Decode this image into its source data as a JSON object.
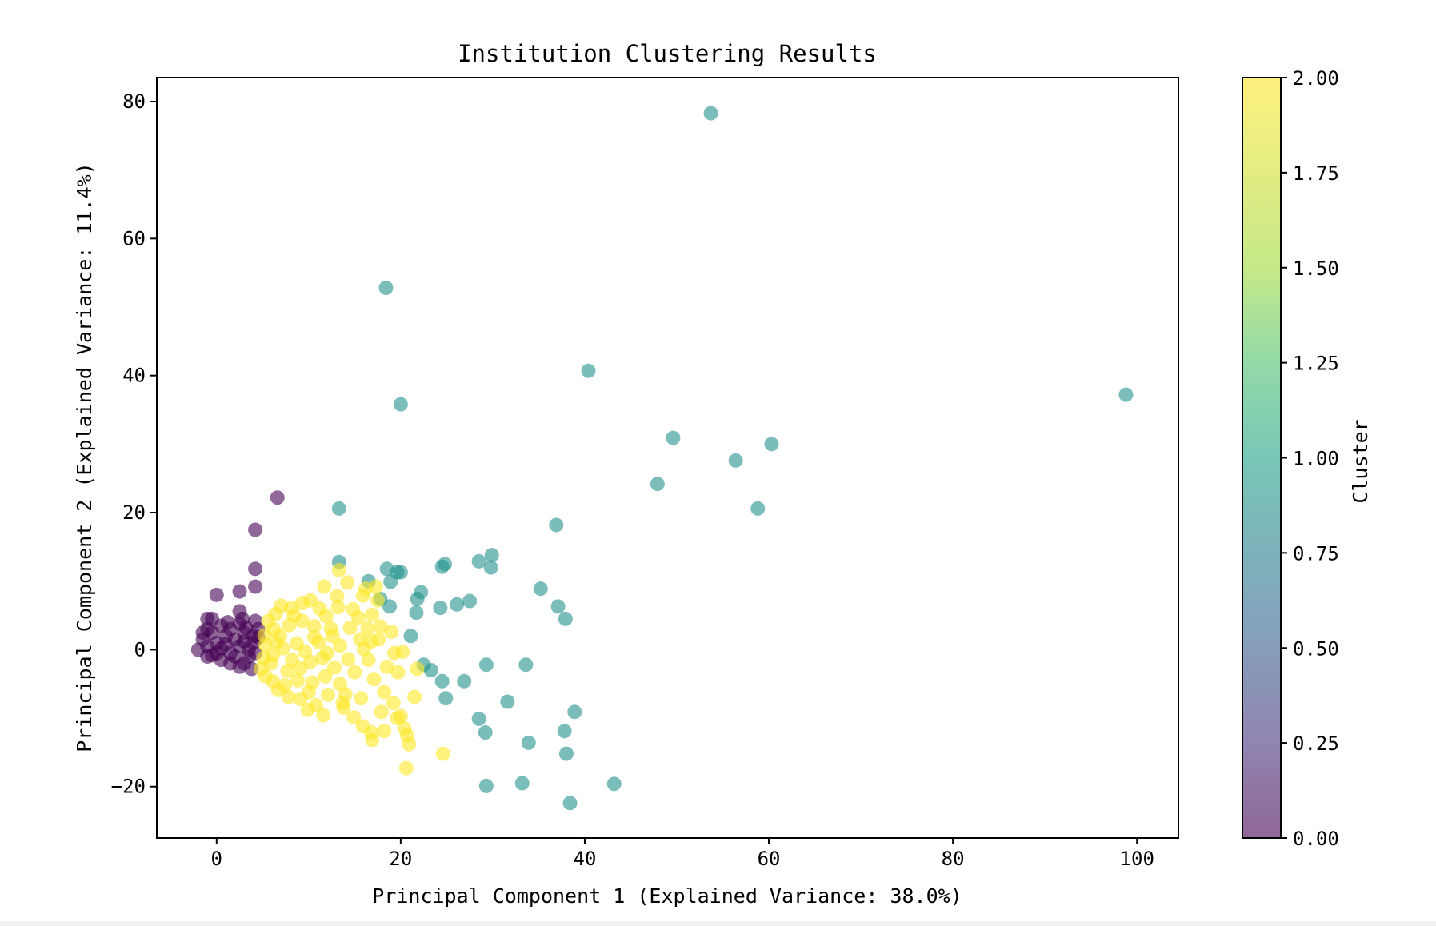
{
  "chart_data": {
    "type": "scatter",
    "title": "Institution Clustering Results",
    "xlabel": "Principal Component 1 (Explained Variance: 38.0%)",
    "ylabel": "Principal Component 2 (Explained Variance: 11.4%)",
    "xlim": [
      -6.5,
      104.5
    ],
    "ylim": [
      -27.5,
      83.5
    ],
    "xticks": [
      0,
      20,
      40,
      60,
      80,
      100
    ],
    "yticks": [
      -20,
      0,
      20,
      40,
      60,
      80
    ],
    "colorbar": {
      "label": "Cluster",
      "range": [
        0,
        2
      ],
      "ticks": [
        "0.00",
        "0.25",
        "0.50",
        "0.75",
        "1.00",
        "1.25",
        "1.50",
        "1.75",
        "2.00"
      ],
      "colormap": "viridis"
    },
    "colors": {
      "cluster_0": "#440154",
      "cluster_1": "#21918c",
      "cluster_2": "#fde725"
    },
    "alpha": 0.6,
    "series": [
      {
        "cluster": 0,
        "points": [
          [
            0,
            1
          ],
          [
            0.5,
            0.2
          ],
          [
            1,
            2
          ],
          [
            1.5,
            -0.5
          ],
          [
            2,
            1.5
          ],
          [
            2.5,
            0.5
          ],
          [
            3,
            2.5
          ],
          [
            3.5,
            -1
          ],
          [
            4,
            1
          ],
          [
            4.5,
            3
          ],
          [
            -1,
            0.5
          ],
          [
            -1.5,
            1.5
          ],
          [
            -2,
            0
          ],
          [
            -1,
            -1
          ],
          [
            -0.5,
            2.5
          ],
          [
            0.5,
            3.5
          ],
          [
            1.5,
            3
          ],
          [
            2.5,
            3.8
          ],
          [
            3.2,
            3.2
          ],
          [
            4,
            2
          ],
          [
            -1,
            3
          ],
          [
            -1,
            4.5
          ],
          [
            -0.5,
            4.5
          ],
          [
            0.5,
            -1.5
          ],
          [
            1.5,
            -2
          ],
          [
            2.5,
            -2.5
          ],
          [
            3,
            -2
          ],
          [
            3.5,
            0
          ],
          [
            4.2,
            -0.5
          ],
          [
            4.5,
            1.8
          ],
          [
            0,
            -0.5
          ],
          [
            1,
            0.8
          ],
          [
            2,
            -1
          ],
          [
            3,
            1.2
          ],
          [
            -0.5,
            -0.8
          ],
          [
            1.2,
            4
          ],
          [
            2.8,
            4.5
          ],
          [
            -1.5,
            2.5
          ],
          [
            4.2,
            4.2
          ],
          [
            3.8,
            -2.8
          ],
          [
            0,
            8
          ],
          [
            2.5,
            8.5
          ],
          [
            4.2,
            9.2
          ],
          [
            2.5,
            5.6
          ],
          [
            4.2,
            11.8
          ],
          [
            4.2,
            17.5
          ],
          [
            6.6,
            22.2
          ]
        ]
      },
      {
        "cluster": 1,
        "points": [
          [
            53.7,
            78.3
          ],
          [
            18.4,
            52.8
          ],
          [
            40.4,
            40.7
          ],
          [
            20.0,
            35.8
          ],
          [
            98.8,
            37.2
          ],
          [
            49.6,
            30.9
          ],
          [
            60.3,
            30.0
          ],
          [
            56.4,
            27.6
          ],
          [
            47.9,
            24.2
          ],
          [
            58.8,
            20.6
          ],
          [
            13.3,
            20.6
          ],
          [
            36.9,
            18.2
          ],
          [
            13.3,
            12.8
          ],
          [
            18.5,
            11.8
          ],
          [
            19.6,
            11.3
          ],
          [
            20.0,
            11.3
          ],
          [
            24.5,
            12.1
          ],
          [
            24.8,
            12.5
          ],
          [
            28.5,
            12.9
          ],
          [
            29.9,
            13.8
          ],
          [
            29.8,
            12.0
          ],
          [
            16.5,
            10.0
          ],
          [
            18.9,
            9.9
          ],
          [
            35.2,
            8.9
          ],
          [
            22.2,
            8.4
          ],
          [
            21.8,
            7.4
          ],
          [
            17.8,
            7.4
          ],
          [
            27.5,
            7.1
          ],
          [
            26.1,
            6.6
          ],
          [
            24.3,
            6.1
          ],
          [
            18.8,
            6.3
          ],
          [
            37.1,
            6.3
          ],
          [
            21.7,
            5.4
          ],
          [
            37.9,
            4.5
          ],
          [
            21.1,
            2.0
          ],
          [
            22.5,
            -2.2
          ],
          [
            23.3,
            -3.0
          ],
          [
            29.3,
            -2.2
          ],
          [
            33.6,
            -2.2
          ],
          [
            24.5,
            -4.6
          ],
          [
            26.9,
            -4.6
          ],
          [
            24.9,
            -7.1
          ],
          [
            31.6,
            -7.6
          ],
          [
            38.9,
            -9.1
          ],
          [
            28.5,
            -10.1
          ],
          [
            29.2,
            -12.1
          ],
          [
            37.8,
            -11.9
          ],
          [
            33.9,
            -13.6
          ],
          [
            38.0,
            -15.2
          ],
          [
            29.3,
            -19.9
          ],
          [
            33.2,
            -19.5
          ],
          [
            43.2,
            -19.6
          ],
          [
            38.4,
            -22.4
          ]
        ]
      },
      {
        "cluster": 2,
        "points": [
          [
            13.3,
            11.6
          ],
          [
            14.2,
            9.8
          ],
          [
            11.7,
            9.2
          ],
          [
            16.2,
            8.9
          ],
          [
            17.3,
            9.2
          ],
          [
            15.9,
            7.9
          ],
          [
            13.1,
            7.8
          ],
          [
            10.2,
            7.2
          ],
          [
            9.3,
            6.8
          ],
          [
            8.1,
            6.1
          ],
          [
            7.0,
            6.4
          ],
          [
            6.4,
            5.2
          ],
          [
            5.6,
            4.2
          ],
          [
            5.2,
            2.1
          ],
          [
            5.3,
            0.7
          ],
          [
            5.1,
            -1.2
          ],
          [
            4.8,
            -2.8
          ],
          [
            5.3,
            -3.9
          ],
          [
            6.1,
            -4.6
          ],
          [
            6.7,
            -5.9
          ],
          [
            7.8,
            -6.9
          ],
          [
            9.1,
            -7.2
          ],
          [
            10.8,
            -8.1
          ],
          [
            11.6,
            -9.6
          ],
          [
            13.8,
            -8.5
          ],
          [
            14.9,
            -9.9
          ],
          [
            15.9,
            -11.2
          ],
          [
            16.8,
            -12.1
          ],
          [
            16.9,
            -13.2
          ],
          [
            18.2,
            -11.9
          ],
          [
            19.6,
            -10.0
          ],
          [
            20.0,
            -9.7
          ],
          [
            20.4,
            -11.5
          ],
          [
            20.7,
            -12.5
          ],
          [
            20.9,
            -13.8
          ],
          [
            20.6,
            -17.3
          ],
          [
            24.6,
            -15.2
          ],
          [
            21.5,
            -6.9
          ],
          [
            19.2,
            -7.8
          ],
          [
            18.2,
            -6.2
          ],
          [
            19.7,
            -3.3
          ],
          [
            20.2,
            -0.3
          ],
          [
            19.3,
            -0.5
          ],
          [
            16.0,
            0.1
          ],
          [
            15.6,
            1.5
          ],
          [
            16.8,
            1.2
          ],
          [
            17.6,
            1.5
          ],
          [
            16.4,
            3.1
          ],
          [
            15.4,
            4.7
          ],
          [
            16.9,
            5.1
          ],
          [
            17.8,
            3.4
          ],
          [
            11.1,
            1.1
          ],
          [
            12.6,
            2.0
          ],
          [
            13.4,
            0.6
          ],
          [
            10.2,
            -1.8
          ],
          [
            11.8,
            -3.9
          ],
          [
            13.4,
            -5.0
          ],
          [
            12.1,
            -6.6
          ],
          [
            10.4,
            -4.8
          ],
          [
            9.1,
            -2.7
          ],
          [
            8.2,
            -1.5
          ],
          [
            7.2,
            0.2
          ],
          [
            6.9,
            2.0
          ],
          [
            7.9,
            3.6
          ],
          [
            9.3,
            4.2
          ],
          [
            10.6,
            3.4
          ],
          [
            11.9,
            4.9
          ],
          [
            13.2,
            6.2
          ],
          [
            8.7,
            0.9
          ],
          [
            9.6,
            -0.3
          ],
          [
            6.1,
            -0.8
          ],
          [
            6.5,
            1.1
          ],
          [
            7.7,
            -3.1
          ],
          [
            8.8,
            -4.5
          ],
          [
            10.0,
            -6.2
          ],
          [
            12.8,
            -2.6
          ],
          [
            14.3,
            -1.4
          ],
          [
            15.0,
            -3.3
          ],
          [
            14.0,
            -6.5
          ],
          [
            17.1,
            -4.3
          ],
          [
            18.5,
            -2.5
          ],
          [
            16.5,
            -1.5
          ],
          [
            12.0,
            -0.5
          ],
          [
            11.2,
            6.0
          ],
          [
            14.5,
            3.2
          ],
          [
            6.2,
            3.0
          ],
          [
            5.9,
            -2.0
          ],
          [
            7.4,
            -5.2
          ],
          [
            10.6,
            1.8
          ],
          [
            9.9,
            -8.8
          ],
          [
            8.4,
            5.0
          ],
          [
            13.7,
            -7.8
          ],
          [
            15.7,
            -7.1
          ],
          [
            17.9,
            -9.1
          ],
          [
            19.0,
            2.6
          ],
          [
            17.5,
            7.2
          ],
          [
            21.8,
            -2.8
          ],
          [
            14.8,
            5.9
          ],
          [
            12.4,
            3.1
          ],
          [
            11.5,
            -1.2
          ]
        ]
      }
    ]
  }
}
